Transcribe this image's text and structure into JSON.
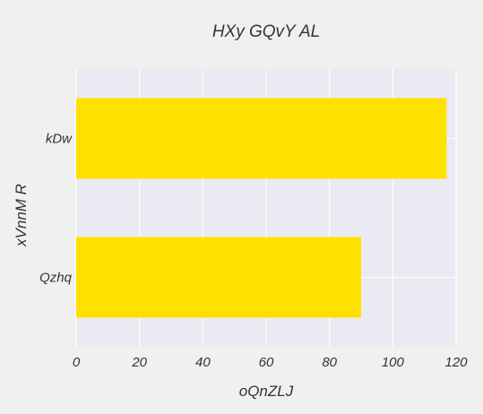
{
  "chart_data": {
    "type": "bar",
    "orientation": "horizontal",
    "title": "HXy GQvY AL",
    "xlabel": "oQnZLJ",
    "ylabel": "xVnnM  R",
    "categories": [
      "kDw",
      "Qzhq"
    ],
    "values": [
      117,
      90
    ],
    "xlim": [
      0,
      120
    ],
    "xticks": [
      0,
      20,
      40,
      60,
      80,
      100,
      120
    ],
    "grid": true,
    "colors": {
      "bar": "#ffe100",
      "plot_background": "#eaeaf2",
      "page_background": "#f0f0f0",
      "grid": "#ffffff"
    }
  }
}
